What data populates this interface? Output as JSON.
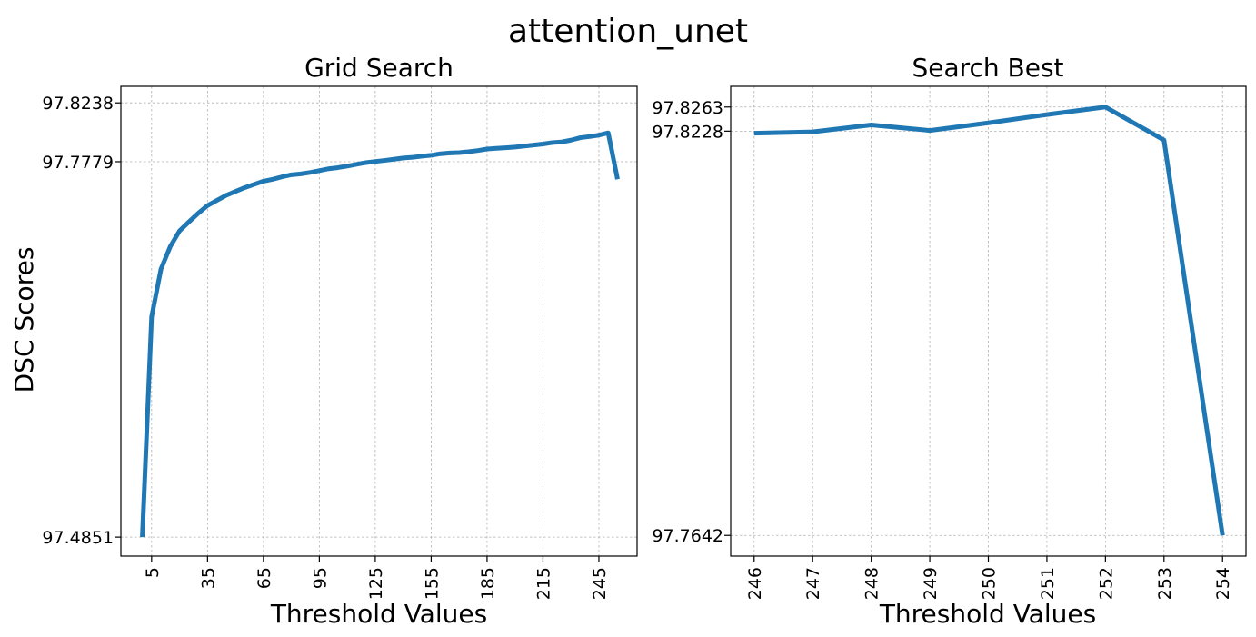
{
  "figure": {
    "suptitle": "attention_unet"
  },
  "colors": {
    "series": "#1f77b4",
    "grid": "#b0b0b0"
  },
  "chart_data": [
    {
      "type": "line",
      "title": "Grid Search",
      "xlabel": "Threshold Values",
      "ylabel": "DSC Scores",
      "grid": true,
      "x_ticks": [
        5,
        35,
        65,
        95,
        125,
        155,
        185,
        215,
        245
      ],
      "y_ticks": [
        97.4851,
        97.7779,
        97.8238
      ],
      "xlim": [
        -11.5,
        265.5
      ],
      "ylim": [
        97.4703,
        97.8367
      ],
      "x": [
        0,
        5,
        10,
        15,
        20,
        25,
        30,
        35,
        40,
        45,
        50,
        55,
        60,
        65,
        70,
        75,
        80,
        85,
        90,
        95,
        100,
        105,
        110,
        115,
        120,
        125,
        130,
        135,
        140,
        145,
        150,
        155,
        160,
        165,
        170,
        175,
        180,
        185,
        190,
        195,
        200,
        205,
        210,
        215,
        220,
        225,
        230,
        235,
        240,
        245,
        250,
        255
      ],
      "values": [
        97.4851,
        97.6569,
        97.6941,
        97.7117,
        97.724,
        97.731,
        97.7377,
        97.7437,
        97.7477,
        97.7517,
        97.7547,
        97.7577,
        97.7602,
        97.7627,
        97.7642,
        97.7661,
        97.7677,
        97.7684,
        97.7695,
        97.7709,
        97.7724,
        97.7733,
        97.7745,
        97.7759,
        97.7772,
        97.7781,
        97.7789,
        97.7798,
        97.7808,
        97.7813,
        97.7822,
        97.7829,
        97.7841,
        97.7847,
        97.785,
        97.7857,
        97.7866,
        97.7878,
        97.7883,
        97.7888,
        97.7893,
        97.7901,
        97.7909,
        97.7917,
        97.7928,
        97.7933,
        97.7947,
        97.7966,
        97.7975,
        97.7986,
        97.8004,
        97.7642
      ]
    },
    {
      "type": "line",
      "title": "Search Best",
      "xlabel": "Threshold Values",
      "ylabel": "",
      "grid": true,
      "x_ticks": [
        246,
        247,
        248,
        249,
        250,
        251,
        252,
        253,
        254
      ],
      "y_ticks": [
        97.7642,
        97.8228,
        97.8263
      ],
      "xlim": [
        245.6,
        254.4
      ],
      "ylim": [
        97.7612,
        97.8293
      ],
      "x": [
        246,
        247,
        248,
        249,
        250,
        251,
        252,
        253,
        254
      ],
      "values": [
        97.8225,
        97.8227,
        97.8237,
        97.8229,
        97.824,
        97.8252,
        97.8263,
        97.8215,
        97.7642
      ]
    }
  ]
}
